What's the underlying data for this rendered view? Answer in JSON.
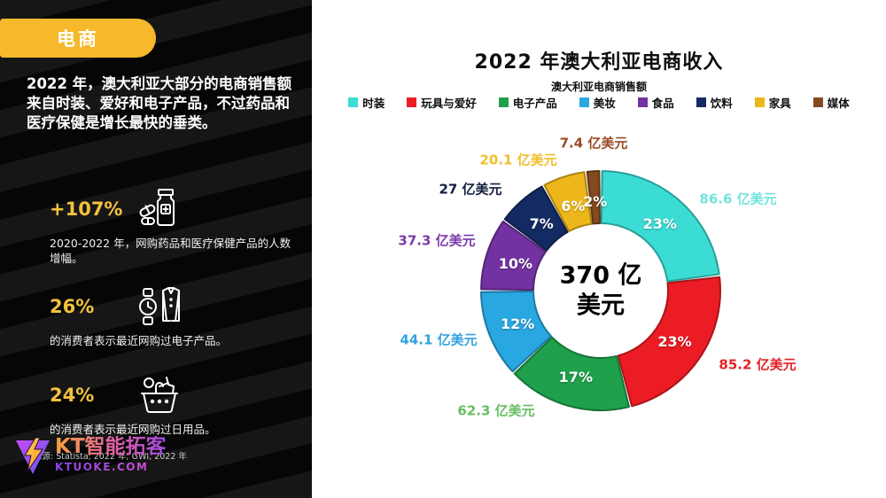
{
  "sidebar": {
    "badge_label": "电商",
    "accent_color": "#F5B92B",
    "intro": "2022 年，澳大利亚大部分的电商销售额来自时装、爱好和电子产品，不过药品和医疗保健是增长最快的垂类。",
    "stats": [
      {
        "value": "+107%",
        "desc": "2020-2022 年，网购药品和医疗保健产品的人数增幅。",
        "icon": "medicine-bottle-icon"
      },
      {
        "value": "26%",
        "desc": "的消费者表示最近网购过电子产品。",
        "icon": "watch-jacket-icon"
      },
      {
        "value": "24%",
        "desc": "的消费者表示最近网购过日用品。",
        "icon": "shopping-basket-icon"
      }
    ],
    "source": "来源: Statista, 2022 年; GWI, 2022 年",
    "logo": {
      "name": "KT智能拓客",
      "url": "KTUOKE.COM"
    }
  },
  "chart": {
    "title": "2022 年澳大利亚电商收入",
    "subtitle": "澳大利亚电商销售额",
    "center_line1": "370 亿",
    "center_line2": "美元"
  },
  "chart_data": {
    "type": "pie",
    "variant": "donut",
    "title": "2022 年澳大利亚电商收入",
    "subtitle": "澳大利亚电商销售额",
    "center_label": "370 亿美元",
    "unit": "亿美元",
    "start_angle_deg": 0,
    "direction": "clockwise",
    "legend_position": "top",
    "segments": [
      {
        "label": "时装",
        "percent": 23,
        "value": 86.6,
        "value_label": "86.6 亿美元",
        "color": "#3BDCD4",
        "label_color": "#72E4DD"
      },
      {
        "label": "玩具与爱好",
        "percent": 23,
        "value": 85.2,
        "value_label": "85.2 亿美元",
        "color": "#EC1C24",
        "label_color": "#E02128"
      },
      {
        "label": "电子产品",
        "percent": 17,
        "value": 62.3,
        "value_label": "62.3 亿美元",
        "color": "#1FA04B",
        "label_color": "#67BE64"
      },
      {
        "label": "美妆",
        "percent": 12,
        "value": 44.1,
        "value_label": "44.1 亿美元",
        "color": "#29A7E1",
        "label_color": "#33A3DC"
      },
      {
        "label": "食品",
        "percent": 10,
        "value": 37.3,
        "value_label": "37.3 亿美元",
        "color": "#7232A2",
        "label_color": "#7A3AA8"
      },
      {
        "label": "饮料",
        "percent": 7,
        "value": 27,
        "value_label": "27 亿美元",
        "color": "#142A63",
        "label_color": "#141E3E"
      },
      {
        "label": "家具",
        "percent": 6,
        "value": 20.1,
        "value_label": "20.1 亿美元",
        "color": "#EDB71B",
        "label_color": "#EFC02C"
      },
      {
        "label": "媒体",
        "percent": 2,
        "value": 7.4,
        "value_label": "7.4 亿美元",
        "color": "#84491F",
        "label_color": "#9A4B26"
      }
    ]
  }
}
